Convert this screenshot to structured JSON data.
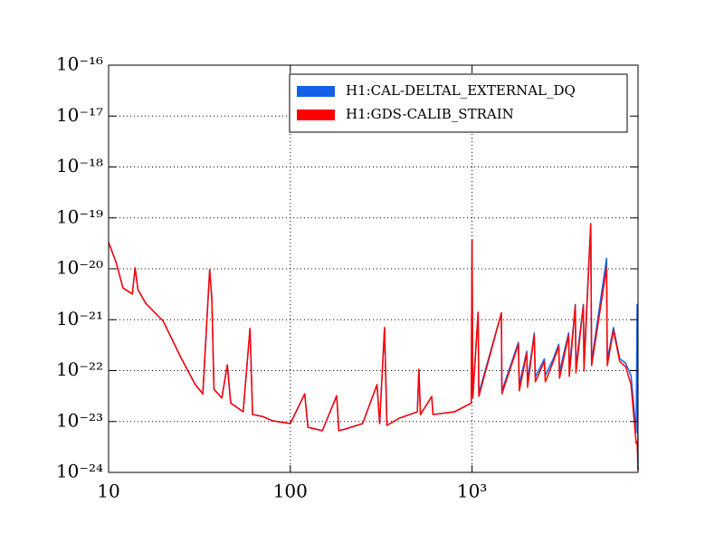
{
  "chart_data": {
    "type": "line",
    "xscale": "log",
    "yscale": "log",
    "grid": true,
    "legend": "upper right",
    "xlim": [
      10,
      8192
    ],
    "ylim": [
      1e-24,
      1e-16
    ],
    "xticks": [
      10,
      100,
      {
        "value": 1000,
        "label": "10³"
      }
    ],
    "yticks": [
      {
        "value": 1e-24,
        "label": "10⁻²⁴"
      },
      {
        "value": 1e-23,
        "label": "10⁻²³"
      },
      {
        "value": 1e-22,
        "label": "10⁻²²"
      },
      {
        "value": 1e-21,
        "label": "10⁻²¹"
      },
      {
        "value": 1e-20,
        "label": "10⁻²⁰"
      },
      {
        "value": 1e-19,
        "label": "10⁻¹⁹"
      },
      {
        "value": 1e-18,
        "label": "10⁻¹⁸"
      },
      {
        "value": 1e-17,
        "label": "10⁻¹⁷"
      },
      {
        "value": 1e-16,
        "label": "10⁻¹⁶"
      }
    ],
    "x": [
      10,
      11,
      12,
      13.5,
      14,
      14.5,
      16,
      20,
      25,
      30,
      33,
      36,
      37,
      38,
      42,
      45,
      47,
      55,
      60,
      62,
      70,
      80,
      100,
      120,
      125,
      150,
      180,
      185,
      200,
      250,
      300,
      310,
      330,
      340,
      400,
      500,
      510,
      520,
      600,
      610,
      800,
      990,
      1000,
      1010,
      1080,
      1090,
      1450,
      1460,
      1800,
      1820,
      2000,
      2020,
      2200,
      2230,
      2500,
      2530,
      2800,
      3000,
      3030,
      3400,
      3430,
      3700,
      3730,
      4100,
      4130,
      4500,
      4550,
      5500,
      5550,
      6000,
      6500,
      7000,
      7500,
      8000,
      8100,
      8192
    ],
    "series": [
      {
        "name": "H1:CAL-DELTAL_EXTERNAL_DQ",
        "color": "#1560e8",
        "values": [
          3.3e-20,
          1.33e-20,
          4.2e-21,
          3.2e-21,
          1.04e-20,
          3.9e-21,
          2.1e-21,
          9.3e-22,
          1.8e-22,
          5.3e-23,
          3.5e-23,
          9.6e-21,
          2.6e-21,
          4.3e-23,
          2.9e-23,
          1.3e-22,
          2.3e-23,
          1.55e-23,
          6.7e-22,
          1.37e-23,
          1.26e-23,
          1.03e-23,
          9.1e-24,
          3.5e-23,
          7.7e-24,
          6.6e-24,
          3.2e-23,
          6.6e-24,
          7.1e-24,
          9.1e-24,
          5.3e-23,
          9.1e-24,
          7e-22,
          8.4e-24,
          1.17e-23,
          1.55e-23,
          1.06e-22,
          1.37e-23,
          3.1e-23,
          1.37e-23,
          1.55e-23,
          2.3e-23,
          3.7e-20,
          3.2e-23,
          1.4e-21,
          3.6e-23,
          1.36e-21,
          4e-23,
          3.6e-22,
          5.2e-23,
          2.4e-22,
          6e-23,
          5.5e-22,
          7.5e-23,
          1.7e-22,
          8e-23,
          1.7e-22,
          3.3e-22,
          9.5e-23,
          5.5e-22,
          1.05e-22,
          2e-21,
          1.2e-22,
          2e-21,
          1.3e-22,
          7.7e-20,
          1.5e-22,
          1.6e-20,
          1.6e-22,
          7e-22,
          1.7e-22,
          1.4e-22,
          8e-23,
          6e-24,
          2e-21,
          1.09e-24
        ]
      },
      {
        "name": "H1:GDS-CALIB_STRAIN",
        "color": "#ff0000",
        "values": [
          3.3e-20,
          1.33e-20,
          4.2e-21,
          3.2e-21,
          1.04e-20,
          3.9e-21,
          2.1e-21,
          9.3e-22,
          1.8e-22,
          5.3e-23,
          3.5e-23,
          9.6e-21,
          2.6e-21,
          4.3e-23,
          2.9e-23,
          1.3e-22,
          2.3e-23,
          1.55e-23,
          6.7e-22,
          1.37e-23,
          1.26e-23,
          1.03e-23,
          9.1e-24,
          3.5e-23,
          7.7e-24,
          6.6e-24,
          3.2e-23,
          6.6e-24,
          7.1e-24,
          9.1e-24,
          5.3e-23,
          9.1e-24,
          7e-22,
          8.4e-24,
          1.17e-23,
          1.55e-23,
          1.06e-22,
          1.37e-23,
          3.1e-23,
          1.37e-23,
          1.55e-23,
          2.3e-23,
          3.7e-20,
          2.9e-23,
          1.4e-21,
          3.1e-23,
          1.36e-21,
          3.5e-23,
          3.3e-22,
          4e-23,
          2.2e-22,
          4.7e-23,
          5e-22,
          6e-23,
          1.5e-22,
          6e-23,
          1.5e-22,
          3e-22,
          7.1e-23,
          5e-22,
          7.7e-23,
          1.9e-21,
          9e-23,
          1.9e-21,
          9.8e-23,
          7.7e-20,
          1.25e-22,
          1.04e-20,
          1.25e-22,
          6.2e-22,
          1.5e-22,
          1.2e-22,
          5.3e-23,
          3.7e-24,
          4e-24,
          1.09e-24
        ]
      }
    ]
  }
}
